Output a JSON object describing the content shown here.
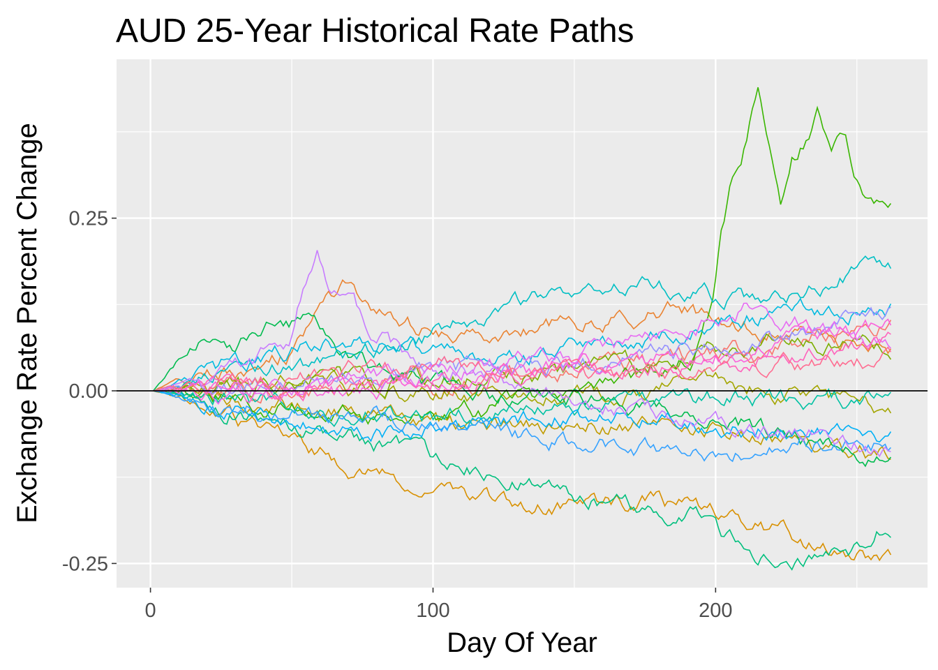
{
  "chart_data": {
    "type": "line",
    "title": "AUD 25-Year Historical Rate Paths",
    "xlabel": "Day Of Year",
    "ylabel": "Exchange Rate Percent Change",
    "xlim": [
      -12,
      275
    ],
    "ylim": [
      -0.285,
      0.48
    ],
    "x_ticks": [
      0,
      100,
      200
    ],
    "x_tick_labels": [
      "0",
      "100",
      "200"
    ],
    "x_minor_ticks": [
      50,
      150,
      250
    ],
    "y_ticks": [
      -0.25,
      0,
      0.25
    ],
    "y_tick_labels": [
      "-0.25",
      "0.00",
      "0.25"
    ],
    "y_minor_ticks": [
      -0.125,
      0.125,
      0.375
    ],
    "grid": true,
    "legend": "none",
    "reference_line": {
      "y": 0,
      "color": "#000000"
    },
    "panel_background": "#EBEBEB",
    "n_days": 261,
    "series": [
      {
        "color": "#F8766D",
        "values": [
          [
            0,
            0
          ],
          [
            50,
            0.005
          ],
          [
            100,
            0.008
          ],
          [
            150,
            0.03
          ],
          [
            200,
            0.05
          ],
          [
            261,
            0.095
          ]
        ]
      },
      {
        "color": "#EA8331",
        "values": [
          [
            0,
            0
          ],
          [
            30,
            0.03
          ],
          [
            50,
            0.06
          ],
          [
            58,
            0.12
          ],
          [
            67,
            0.155
          ],
          [
            75,
            0.12
          ],
          [
            95,
            0.09
          ],
          [
            130,
            0.09
          ],
          [
            160,
            0.1
          ],
          [
            190,
            0.12
          ],
          [
            201,
            0.1
          ],
          [
            230,
            0.08
          ],
          [
            261,
            0.06
          ]
        ]
      },
      {
        "color": "#D89000",
        "values": [
          [
            0,
            0
          ],
          [
            40,
            -0.06
          ],
          [
            52,
            -0.08
          ],
          [
            70,
            -0.11
          ],
          [
            90,
            -0.13
          ],
          [
            110,
            -0.145
          ],
          [
            130,
            -0.17
          ],
          [
            150,
            -0.17
          ],
          [
            175,
            -0.16
          ],
          [
            200,
            -0.18
          ],
          [
            230,
            -0.215
          ],
          [
            261,
            -0.25
          ]
        ]
      },
      {
        "color": "#C09B00",
        "values": [
          [
            0,
            0
          ],
          [
            50,
            -0.02
          ],
          [
            100,
            -0.05
          ],
          [
            150,
            -0.05
          ],
          [
            200,
            -0.06
          ],
          [
            261,
            -0.095
          ]
        ]
      },
      {
        "color": "#A3A500",
        "values": [
          [
            0,
            0
          ],
          [
            50,
            0.01
          ],
          [
            100,
            0.0
          ],
          [
            150,
            -0.01
          ],
          [
            200,
            0.01
          ],
          [
            261,
            -0.03
          ]
        ]
      },
      {
        "color": "#7CAE00",
        "values": [
          [
            0,
            0
          ],
          [
            40,
            0.01
          ],
          [
            90,
            0.02
          ],
          [
            130,
            0.02
          ],
          [
            180,
            0.04
          ],
          [
            220,
            0.08
          ],
          [
            261,
            0.06
          ]
        ]
      },
      {
        "color": "#39B600",
        "values": [
          [
            0,
            0
          ],
          [
            40,
            -0.02
          ],
          [
            80,
            -0.04
          ],
          [
            120,
            -0.03
          ],
          [
            160,
            0.0
          ],
          [
            190,
            0.05
          ],
          [
            198,
            0.13
          ],
          [
            201,
            0.22
          ],
          [
            204,
            0.28
          ],
          [
            208,
            0.33
          ],
          [
            212,
            0.41
          ],
          [
            214,
            0.44
          ],
          [
            218,
            0.35
          ],
          [
            222,
            0.26
          ],
          [
            226,
            0.33
          ],
          [
            232,
            0.37
          ],
          [
            235,
            0.41
          ],
          [
            240,
            0.35
          ],
          [
            245,
            0.36
          ],
          [
            250,
            0.3
          ],
          [
            255,
            0.27
          ],
          [
            261,
            0.26
          ]
        ]
      },
      {
        "color": "#00BB4E",
        "values": [
          [
            0,
            0
          ],
          [
            10,
            0.05
          ],
          [
            20,
            0.08
          ],
          [
            30,
            0.07
          ],
          [
            40,
            0.1
          ],
          [
            55,
            0.1
          ],
          [
            65,
            0.05
          ],
          [
            90,
            0.02
          ],
          [
            110,
            0.0
          ],
          [
            140,
            -0.01
          ],
          [
            170,
            -0.02
          ],
          [
            210,
            -0.05
          ],
          [
            261,
            -0.11
          ]
        ]
      },
      {
        "color": "#00BF7D",
        "values": [
          [
            0,
            0
          ],
          [
            30,
            -0.03
          ],
          [
            60,
            -0.06
          ],
          [
            90,
            -0.09
          ],
          [
            110,
            -0.11
          ],
          [
            130,
            -0.13
          ],
          [
            150,
            -0.15
          ],
          [
            170,
            -0.17
          ],
          [
            190,
            -0.18
          ],
          [
            200,
            -0.21
          ],
          [
            215,
            -0.235
          ],
          [
            235,
            -0.245
          ],
          [
            250,
            -0.23
          ],
          [
            256,
            -0.2
          ],
          [
            261,
            -0.21
          ]
        ]
      },
      {
        "color": "#00C1A3",
        "values": [
          [
            0,
            0
          ],
          [
            50,
            -0.02
          ],
          [
            100,
            -0.04
          ],
          [
            150,
            -0.03
          ],
          [
            200,
            -0.01
          ],
          [
            261,
            -0.01
          ]
        ]
      },
      {
        "color": "#00BFC4",
        "values": [
          [
            0,
            0
          ],
          [
            30,
            0.03
          ],
          [
            60,
            0.04
          ],
          [
            90,
            0.07
          ],
          [
            110,
            0.1
          ],
          [
            130,
            0.13
          ],
          [
            150,
            0.15
          ],
          [
            170,
            0.16
          ],
          [
            190,
            0.14
          ],
          [
            210,
            0.13
          ],
          [
            230,
            0.15
          ],
          [
            250,
            0.17
          ],
          [
            261,
            0.17
          ]
        ]
      },
      {
        "color": "#00BAE0",
        "values": [
          [
            0,
            0
          ],
          [
            20,
            0.03
          ],
          [
            40,
            0.05
          ],
          [
            60,
            0.07
          ],
          [
            80,
            0.07
          ],
          [
            110,
            0.05
          ],
          [
            130,
            0.05
          ],
          [
            150,
            0.07
          ],
          [
            180,
            0.08
          ],
          [
            200,
            0.1
          ],
          [
            230,
            0.12
          ],
          [
            261,
            0.12
          ]
        ]
      },
      {
        "color": "#00B0F6",
        "values": [
          [
            0,
            0
          ],
          [
            40,
            -0.04
          ],
          [
            80,
            -0.06
          ],
          [
            120,
            -0.05
          ],
          [
            160,
            -0.03
          ],
          [
            200,
            -0.05
          ],
          [
            230,
            -0.06
          ],
          [
            261,
            -0.07
          ]
        ]
      },
      {
        "color": "#35A2FF",
        "values": [
          [
            0,
            0
          ],
          [
            40,
            -0.03
          ],
          [
            80,
            -0.04
          ],
          [
            120,
            -0.06
          ],
          [
            160,
            -0.08
          ],
          [
            200,
            -0.09
          ],
          [
            230,
            -0.07
          ],
          [
            261,
            -0.08
          ]
        ]
      },
      {
        "color": "#9590FF",
        "values": [
          [
            0,
            0
          ],
          [
            50,
            0.01
          ],
          [
            100,
            0.03
          ],
          [
            150,
            0.04
          ],
          [
            200,
            0.06
          ],
          [
            261,
            0.11
          ]
        ]
      },
      {
        "color": "#C77CFF",
        "values": [
          [
            0,
            0
          ],
          [
            30,
            0.03
          ],
          [
            48,
            0.07
          ],
          [
            55,
            0.18
          ],
          [
            58,
            0.21
          ],
          [
            62,
            0.15
          ],
          [
            68,
            0.13
          ],
          [
            75,
            0.1
          ],
          [
            90,
            0.05
          ],
          [
            120,
            0.02
          ],
          [
            160,
            -0.02
          ],
          [
            200,
            -0.05
          ],
          [
            230,
            -0.06
          ],
          [
            261,
            -0.09
          ]
        ]
      },
      {
        "color": "#E76BF3",
        "values": [
          [
            0,
            0
          ],
          [
            50,
            0.01
          ],
          [
            100,
            0.03
          ],
          [
            150,
            0.05
          ],
          [
            190,
            0.09
          ],
          [
            210,
            0.12
          ],
          [
            230,
            0.1
          ],
          [
            261,
            0.06
          ]
        ]
      },
      {
        "color": "#FA62DB",
        "values": [
          [
            0,
            0
          ],
          [
            50,
            -0.01
          ],
          [
            100,
            0.01
          ],
          [
            150,
            0.04
          ],
          [
            200,
            0.05
          ],
          [
            230,
            0.08
          ],
          [
            261,
            0.095
          ]
        ]
      },
      {
        "color": "#FF62BC",
        "values": [
          [
            0,
            0
          ],
          [
            50,
            0.0
          ],
          [
            100,
            0.02
          ],
          [
            150,
            0.03
          ],
          [
            200,
            0.04
          ],
          [
            261,
            0.07
          ]
        ]
      },
      {
        "color": "#FF6C91",
        "values": [
          [
            0,
            0
          ],
          [
            50,
            0.02
          ],
          [
            100,
            0.04
          ],
          [
            150,
            0.02
          ],
          [
            200,
            0.03
          ],
          [
            261,
            0.05
          ]
        ]
      }
    ]
  }
}
